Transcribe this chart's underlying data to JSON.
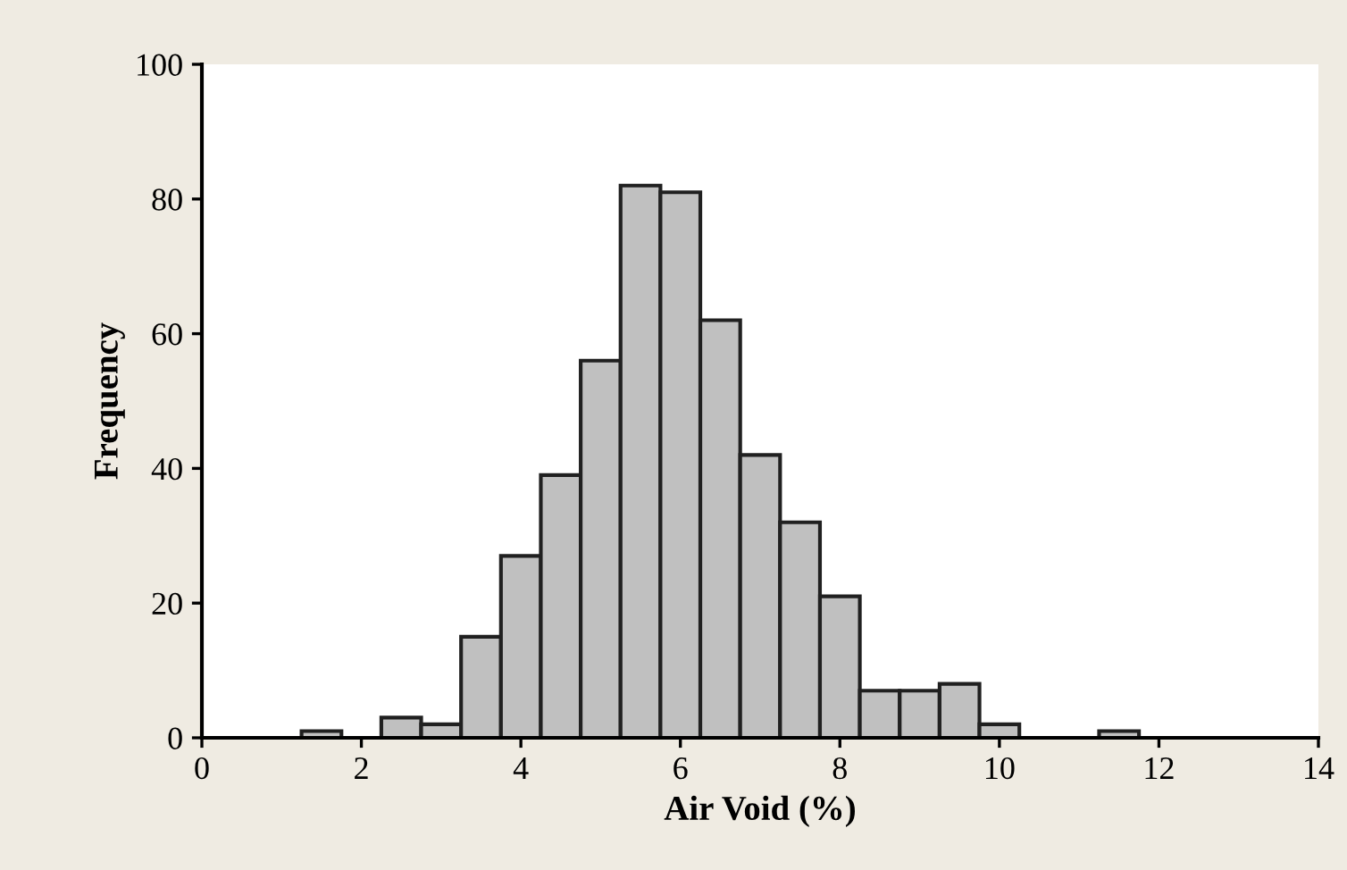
{
  "chart_data": {
    "type": "histogram",
    "xlabel": "Air Void (%)",
    "ylabel": "Frequency",
    "bins": [
      1.25,
      1.75,
      2.25,
      2.75,
      3.25,
      3.75,
      4.25,
      4.75,
      5.25,
      5.75,
      6.25,
      6.75,
      7.25,
      7.75,
      8.25,
      8.75,
      9.25,
      9.75,
      10.25,
      10.75,
      11.25,
      11.75
    ],
    "values": [
      1,
      0,
      3,
      2,
      15,
      27,
      39,
      56,
      82,
      81,
      62,
      42,
      32,
      21,
      7,
      7,
      8,
      2,
      0,
      0,
      1
    ],
    "color": "#c0c0c0",
    "xlim": [
      0,
      14
    ],
    "xticks": [
      0,
      2,
      4,
      6,
      8,
      10,
      12,
      14
    ],
    "ylim": [
      0,
      100
    ],
    "yticks": [
      0,
      20,
      40,
      60,
      80,
      100
    ],
    "grid": false
  }
}
